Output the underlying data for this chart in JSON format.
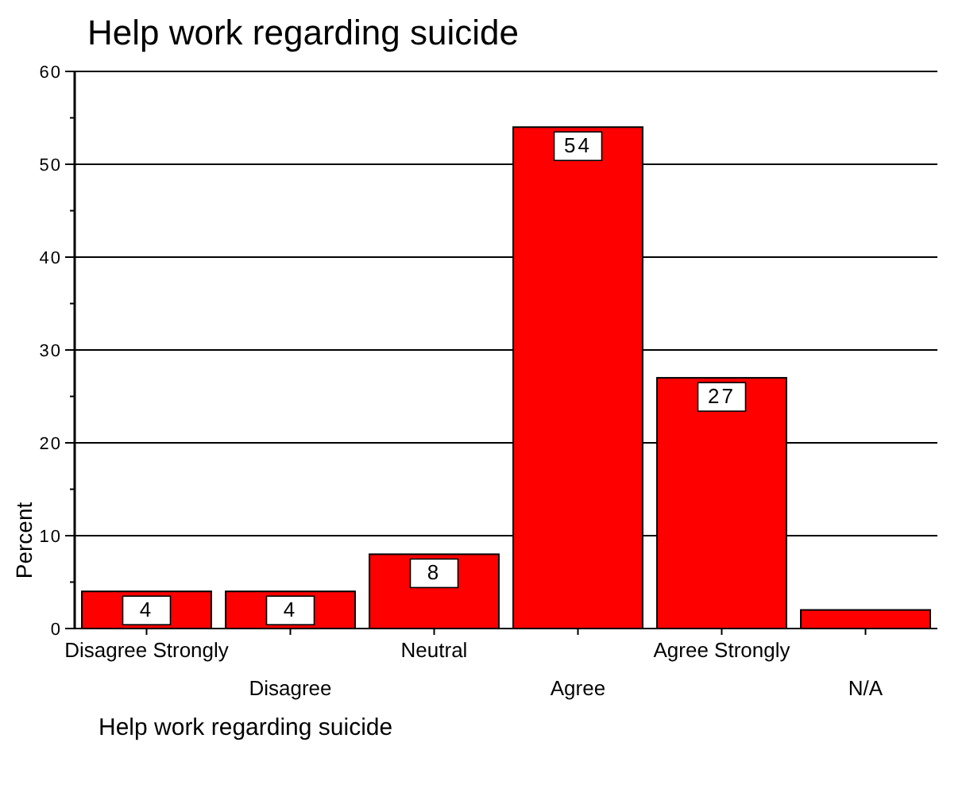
{
  "chart_data": {
    "type": "bar",
    "title": "Help work regarding suicide",
    "ylabel": "Percent",
    "categories": [
      "Disagree Strongly",
      "Disagree",
      "Neutral",
      "Agree",
      "Agree Strongly",
      "N/A"
    ],
    "values": [
      4,
      4,
      8,
      54,
      27,
      2
    ],
    "value_labels": [
      "4",
      "4",
      "8",
      "54",
      "27",
      null
    ],
    "color": "#ff0000",
    "ylim": [
      0,
      60
    ],
    "yticks": [
      0,
      {
        "value": 5,
        "label": null
      },
      10,
      {
        "value": 15,
        "label": null
      },
      20,
      {
        "value": 25,
        "label": null
      },
      30,
      {
        "value": 35,
        "label": null
      },
      40,
      {
        "value": 45,
        "label": null
      },
      50,
      {
        "value": 55,
        "label": null
      },
      60
    ],
    "grid": "y",
    "annotations": [
      "Help work regarding suicide"
    ]
  }
}
